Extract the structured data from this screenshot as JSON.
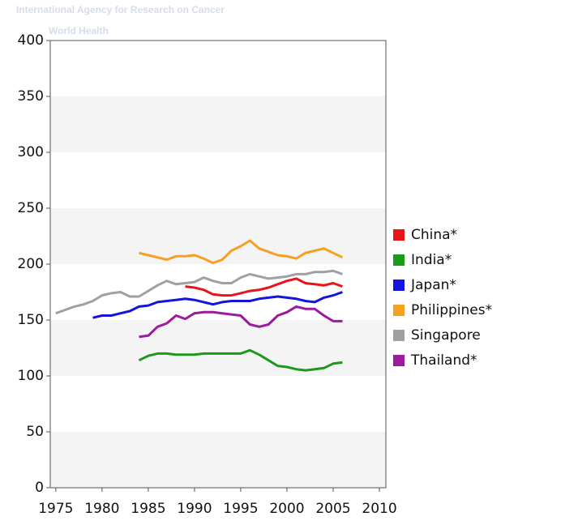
{
  "header": {
    "agency": "International Agency for Research on Cancer",
    "logo": "World Health"
  },
  "chart_data": {
    "type": "line",
    "x": [
      1975,
      1976,
      1977,
      1978,
      1979,
      1980,
      1981,
      1982,
      1983,
      1984,
      1985,
      1986,
      1987,
      1988,
      1989,
      1990,
      1991,
      1992,
      1993,
      1994,
      1995,
      1996,
      1997,
      1998,
      1999,
      2000,
      2001,
      2002,
      2003,
      2004,
      2005,
      2006
    ],
    "series": [
      {
        "name": "China*",
        "color": "#e8141a",
        "values": [
          null,
          null,
          null,
          null,
          null,
          null,
          null,
          null,
          null,
          null,
          null,
          null,
          null,
          null,
          180,
          179,
          177,
          173,
          172,
          172,
          174,
          176,
          177,
          179,
          182,
          185,
          187,
          183,
          182,
          181,
          183,
          180
        ]
      },
      {
        "name": "India*",
        "color": "#1a9a1a",
        "values": [
          null,
          null,
          null,
          null,
          null,
          null,
          null,
          null,
          null,
          114,
          118,
          120,
          120,
          119,
          119,
          119,
          120,
          120,
          120,
          120,
          120,
          123,
          119,
          114,
          109,
          108,
          106,
          105,
          106,
          107,
          111,
          112
        ]
      },
      {
        "name": "Japan*",
        "color": "#1414e0",
        "values": [
          null,
          null,
          null,
          null,
          152,
          154,
          154,
          156,
          158,
          162,
          163,
          166,
          167,
          168,
          169,
          168,
          166,
          164,
          166,
          167,
          167,
          167,
          169,
          170,
          171,
          170,
          169,
          167,
          166,
          170,
          172,
          175
        ]
      },
      {
        "name": "Philippines*",
        "color": "#f5a021",
        "values": [
          null,
          null,
          null,
          null,
          null,
          null,
          null,
          null,
          null,
          210,
          208,
          206,
          204,
          207,
          207,
          208,
          205,
          201,
          204,
          212,
          216,
          221,
          214,
          211,
          208,
          207,
          205,
          210,
          212,
          214,
          210,
          206
        ]
      },
      {
        "name": "Singapore",
        "color": "#a0a0a0",
        "values": [
          156,
          159,
          162,
          164,
          167,
          172,
          174,
          175,
          171,
          171,
          176,
          181,
          185,
          182,
          183,
          184,
          188,
          185,
          183,
          183,
          188,
          191,
          189,
          187,
          188,
          189,
          191,
          191,
          193,
          193,
          194,
          191
        ]
      },
      {
        "name": "Thailand*",
        "color": "#9b1a9e",
        "values": [
          null,
          null,
          null,
          null,
          null,
          null,
          null,
          null,
          null,
          135,
          136,
          144,
          147,
          154,
          151,
          156,
          157,
          157,
          156,
          155,
          154,
          146,
          144,
          146,
          154,
          157,
          162,
          160,
          160,
          154,
          149,
          149
        ]
      }
    ],
    "xlim": [
      1974.4,
      2010.7
    ],
    "ylim": [
      0,
      400
    ],
    "xticks": [
      1975,
      1980,
      1985,
      1990,
      1995,
      2000,
      2005,
      2010
    ],
    "yticks": [
      0,
      50,
      100,
      150,
      200,
      250,
      300,
      350,
      400
    ],
    "grid_bands": true
  }
}
